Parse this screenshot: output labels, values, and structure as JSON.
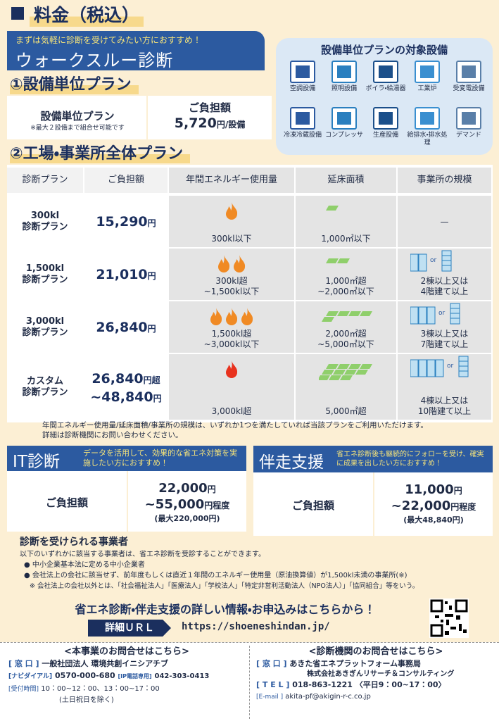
{
  "header": {
    "title": "料金（税込）"
  },
  "walkthrough": {
    "banner": "まずは気軽に診断を受けてみたい方におすすめ！",
    "title": "ウォークスルー診断"
  },
  "plan1": {
    "title": "①設備単位プラン",
    "name": "設備単位プラン",
    "note": "※最大２設備まで組合せ可能です",
    "cost_label": "ご負担額",
    "cost": "5,720",
    "unit": "円/設備"
  },
  "equipment": {
    "title": "設備単位プランの対象設備",
    "items": [
      "空調設備",
      "照明設備",
      "ボイラ・給湯器",
      "工業炉",
      "受変電設備",
      "冷凍冷蔵設備",
      "コンプレッサ",
      "生産設備",
      "給排水・排水処理",
      "デマンド"
    ]
  },
  "plan2": {
    "title": "②工場・事業所全体プラン",
    "headers": [
      "診断プラン",
      "ご負担額",
      "年間エネルギー使用量",
      "延床面積",
      "事業所の規模"
    ],
    "or": "or",
    "rows": [
      {
        "plan": [
          "300kl",
          "診断プラン"
        ],
        "cost": [
          {
            "amount": "15,290",
            "unit": "円"
          }
        ],
        "energy": [
          "300kl以下"
        ],
        "floor": [
          "1,000㎡以下"
        ],
        "scale": [
          "—"
        ]
      },
      {
        "plan": [
          "1,500kl",
          "診断プラン"
        ],
        "cost": [
          {
            "amount": "21,010",
            "unit": "円"
          }
        ],
        "energy": [
          "300kl超",
          "~1,500kl以下"
        ],
        "floor": [
          "1,000㎡超",
          "~2,000㎡以下"
        ],
        "scale": [
          "2棟以上又は",
          "4階建て以上"
        ]
      },
      {
        "plan": [
          "3,000kl",
          "診断プラン"
        ],
        "cost": [
          {
            "amount": "26,840",
            "unit": "円"
          }
        ],
        "energy": [
          "1,500kl超",
          "~3,000kl以下"
        ],
        "floor": [
          "2,000㎡超",
          "~5,000㎡以下"
        ],
        "scale": [
          "3棟以上又は",
          "7階建て以上"
        ]
      },
      {
        "plan": [
          "カスタム",
          "診断プラン"
        ],
        "cost": [
          {
            "amount": "26,840",
            "unit": "円超"
          },
          {
            "amount": "~48,840",
            "unit": "円"
          }
        ],
        "energy": [
          "3,000kl超"
        ],
        "floor": [
          "5,000㎡超"
        ],
        "scale": [
          "4棟以上又は",
          "10階建て以上"
        ]
      }
    ],
    "note": [
      "年間エネルギー使用量/延床面積/事業所の規模は、いずれか1つを満たしていれば当該プランをご利用いただけます。",
      "詳細は診断機関にお問い合わせください。"
    ]
  },
  "it": {
    "title": "IT診断",
    "desc": "データを活用して、効果的な省エネ対策を実施したい方におすすめ！",
    "cost_label": "ご負担額",
    "cost": [
      {
        "amount": "22,000",
        "unit": "円"
      },
      {
        "amount": "~55,000",
        "unit": "円程度"
      }
    ],
    "max": "(最大220,000円)"
  },
  "support": {
    "title": "伴走支援",
    "desc": "省エネ診断後も継続的にフォローを受け、確実に成果を出したい方におすすめ！",
    "cost_label": "ご負担額",
    "cost": [
      {
        "amount": "11,000",
        "unit": "円"
      },
      {
        "amount": "~22,000",
        "unit": "円程度"
      }
    ],
    "max": "(最大48,840円)"
  },
  "eligibility": {
    "title": "診断を受けられる事業者",
    "intro": "以下のいずれかに該当する事業者は、省エネ診断を受診することができます。",
    "items": [
      "中小企業基本法に定める中小企業者",
      "会社法上の会社に該当せず、前年度もしくは直近１年間のエネルギー使用量（原油換算値）が1,500kl未満の事業所(※)"
    ],
    "note": "※ 会社法上の会社以外とは、「社会福祉法人」「医療法人」「学校法人」「特定非営利活動法人（NPO法人）」「協同組合」等をいう。"
  },
  "cta": {
    "text": "省エネ診断・伴走支援の詳しい情報・お申込みはこちらから！",
    "url_label": "詳細ＵＲＬ",
    "url": "https://shoeneshindan.jp/"
  },
  "contacts": {
    "left": {
      "title": "<本事業のお問合せはこちら>",
      "window": {
        "label": "[ 窓 口 ]",
        "text": "一般社団法人 環境共創イニシアチブ"
      },
      "navi": {
        "label": "[ナビダイアル]",
        "text": "0570-000-680"
      },
      "ip": {
        "label": "[IP電話専用]",
        "text": "042-303-0413"
      },
      "hours": {
        "label": "[受付時間]",
        "text": "10：00~12：00、13：00~17：00"
      },
      "hours_note": "(土日祝日を除く)"
    },
    "right": {
      "title": "<診断機関のお問合せはこちら>",
      "window": {
        "label": "[ 窓 口 ]",
        "text": "あきた省エネプラットフォーム事務局"
      },
      "company": "株式会社あきぎんリサーチ＆コンサルティング",
      "tel": {
        "label": "[ T E L ]",
        "text": "018-863-1221"
      },
      "tel_hours": "〈平日9：00~17：00〉",
      "email": {
        "label": "[E-mail ]",
        "text": "akita-pf@akigin-r-c.co.jp"
      }
    }
  }
}
